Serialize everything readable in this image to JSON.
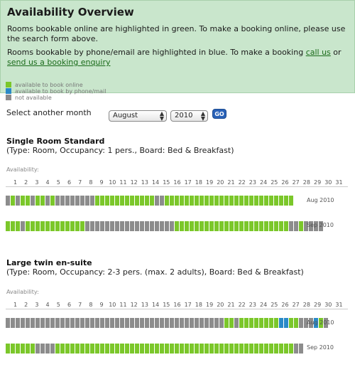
{
  "header": {
    "title": "Availability Overview",
    "para1": "Rooms bookable online are highlighted in green. To make a booking online, please use the search form above.",
    "para2_prefix": "Rooms bookable by phone/email are highlighted in blue. To make a booking ",
    "link_call": "call us",
    "para2_or": " or ",
    "link_enquiry": "send us a booking enquiry"
  },
  "legend": {
    "online": "available to book online",
    "phone": "available to book by phone/mail",
    "none": "not available"
  },
  "colors": {
    "online": "#7bc72a",
    "phone": "#2a8ac8",
    "none": "#8c8c8c"
  },
  "month_select": {
    "label": "Select another month",
    "month": "August",
    "year": "2010",
    "go": "GO"
  },
  "days": [
    "1",
    "2",
    "3",
    "4",
    "5",
    "6",
    "7",
    "8",
    "9",
    "10",
    "11",
    "12",
    "13",
    "14",
    "15",
    "16",
    "17",
    "18",
    "19",
    "20",
    "21",
    "22",
    "23",
    "24",
    "25",
    "26",
    "27",
    "28",
    "29",
    "30",
    "31"
  ],
  "rooms": [
    {
      "name": "Single Room Standard",
      "info": "(Type: Room, Occupancy: 1 pers., Board: Bed & Breakfast)",
      "avail_label": "Availability:",
      "months": [
        {
          "tag": "Aug 2010",
          "days": "NGNGGNGGNGNNNNNNNNGGGGGGGGGGGGNNGGGGGGGGGGGGGGGGGGGGGGGGGG"
        },
        {
          "tag": "Sep 2010",
          "days": "GGGNGGGGGGGGGGGGNNNNNNNNNNNNNNNNNNGGGGGGGGGGGGGGGGGGGGGGGNNGNNNN"
        }
      ]
    },
    {
      "name": "Large twin en-suite",
      "info": "(Type: Room, Occupancy: 2-3 pers. (max. 2 adults), Board: Bed & Breakfast)",
      "avail_label": "Availability:",
      "months": [
        {
          "tag": "Aug 2010",
          "days": "NNNNNNNNNNNNNNNNNNNNNNNNNNNNNNNNNNNNNNNNNNNNGGNGGGGGGGGBBGGNNNBGN"
        },
        {
          "tag": "Sep 2010",
          "days": "GGGGGGNNNNGGGGGGGGGGGGGGGGGGGGGGGGGGGGGGGGGGGGGGGGGGGGGGGGNN"
        }
      ]
    }
  ]
}
